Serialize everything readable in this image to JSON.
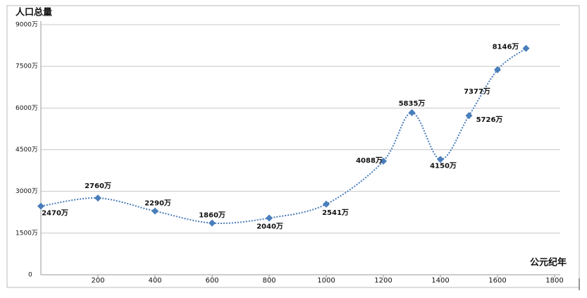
{
  "chart_data": {
    "type": "line",
    "y_label": "人口总量",
    "x_label": "公元纪年",
    "xlim": [
      0,
      1800
    ],
    "xticks": [
      200,
      400,
      600,
      800,
      1000,
      1200,
      1400,
      1600,
      1800
    ],
    "ylim": [
      0,
      9000
    ],
    "yticks": [
      0,
      {
        "value": 1500,
        "label": "1500万"
      },
      {
        "value": 3000,
        "label": "3000万"
      },
      {
        "value": 4500,
        "label": "4500万"
      },
      {
        "value": 6000,
        "label": "6000万"
      },
      {
        "value": 7500,
        "label": "7500万"
      },
      {
        "value": 9000,
        "label": "9000万"
      }
    ],
    "grid": true,
    "color": "#4a7ebb",
    "x": [
      0,
      200,
      400,
      600,
      800,
      1000,
      1200,
      1300,
      1400,
      1500,
      1600,
      1700
    ],
    "values": [
      2470,
      2760,
      2290,
      1860,
      2040,
      2541,
      4088,
      5835,
      4150,
      5726,
      7377,
      8146
    ],
    "value_labels": [
      "2470万",
      "2760万",
      "2290万",
      "1860万",
      "2040万",
      "2541万",
      "4088万",
      "5835万",
      "4150万",
      "5726万",
      "7377万",
      "8146万"
    ]
  }
}
